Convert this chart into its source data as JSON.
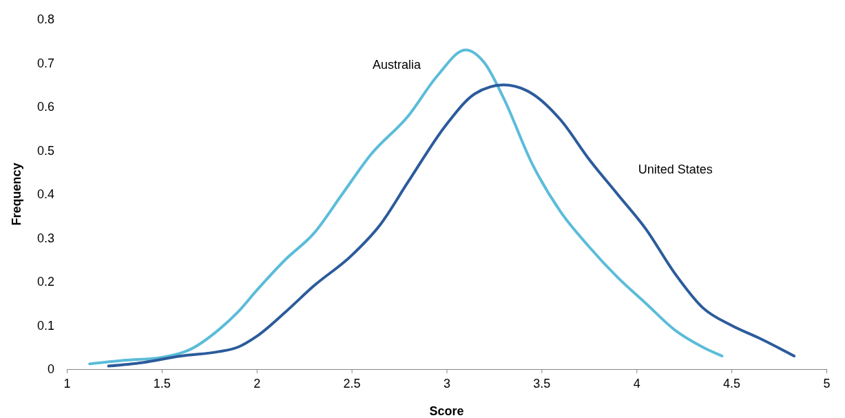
{
  "chart_data": {
    "type": "line",
    "xlabel": "Score",
    "ylabel": "Frequency",
    "xlim": [
      1,
      5
    ],
    "xticks": [
      1,
      1.5,
      2,
      2.5,
      3,
      3.5,
      4,
      4.5,
      5
    ],
    "ylim": [
      0,
      0.8
    ],
    "yticks": [
      0,
      0.1,
      0.2,
      0.3,
      0.4,
      0.5,
      0.6,
      0.7,
      0.8
    ],
    "grid": false,
    "legend": false,
    "marker": "none",
    "line_style": "solid",
    "series": [
      {
        "name": "Australia",
        "color": "#5bbcd9",
        "x": [
          1.12,
          1.3,
          1.5,
          1.65,
          1.8,
          1.9,
          2,
          2.15,
          2.3,
          2.45,
          2.6,
          2.8,
          2.95,
          3.1,
          3.2,
          3.3,
          3.45,
          3.6,
          3.75,
          3.9,
          4.05,
          4.2,
          4.35,
          4.45
        ],
        "values": [
          0.012,
          0.02,
          0.027,
          0.045,
          0.09,
          0.13,
          0.18,
          0.25,
          0.31,
          0.4,
          0.49,
          0.58,
          0.67,
          0.73,
          0.7,
          0.62,
          0.47,
          0.36,
          0.28,
          0.21,
          0.15,
          0.09,
          0.05,
          0.03
        ]
      },
      {
        "name": "United States",
        "color": "#2b5b9b",
        "x": [
          1.22,
          1.4,
          1.6,
          1.8,
          1.9,
          2,
          2.15,
          2.3,
          2.5,
          2.65,
          2.8,
          3,
          3.15,
          3.3,
          3.45,
          3.6,
          3.75,
          3.9,
          4.05,
          4.2,
          4.35,
          4.5,
          4.65,
          4.83
        ],
        "values": [
          0.007,
          0.015,
          0.03,
          0.04,
          0.05,
          0.075,
          0.13,
          0.19,
          0.26,
          0.33,
          0.43,
          0.56,
          0.63,
          0.65,
          0.63,
          0.57,
          0.48,
          0.4,
          0.32,
          0.22,
          0.14,
          0.1,
          0.07,
          0.03
        ]
      }
    ]
  }
}
